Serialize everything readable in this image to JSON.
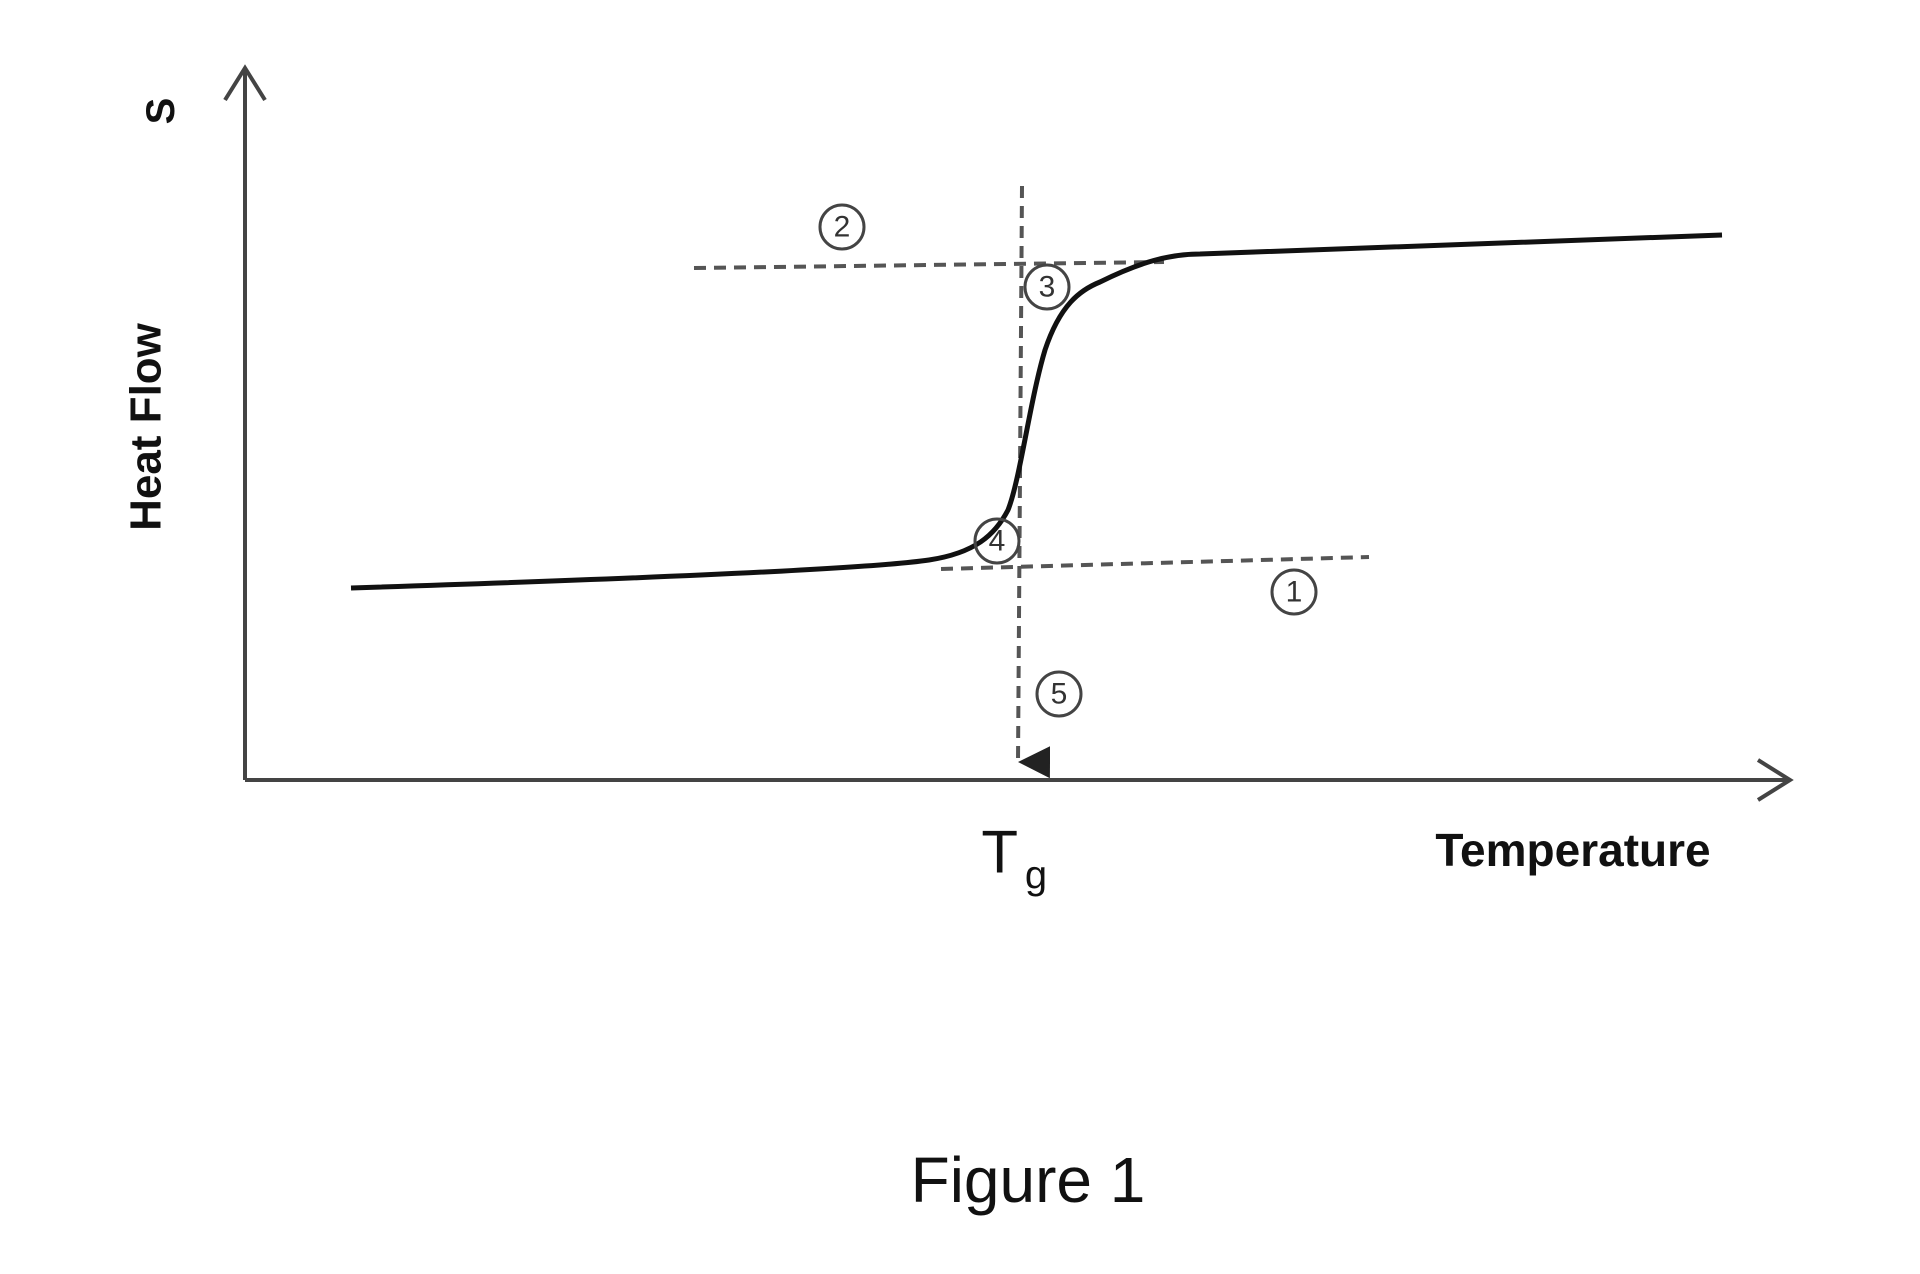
{
  "diagram": {
    "y_axis_label": "Heat Flow",
    "corner_label": "S",
    "x_axis_label": "Temperature",
    "tg_label": {
      "main": "T",
      "subscript": "g"
    },
    "markers": [
      "1",
      "2",
      "3",
      "4",
      "5"
    ],
    "caption": "Figure 1"
  }
}
